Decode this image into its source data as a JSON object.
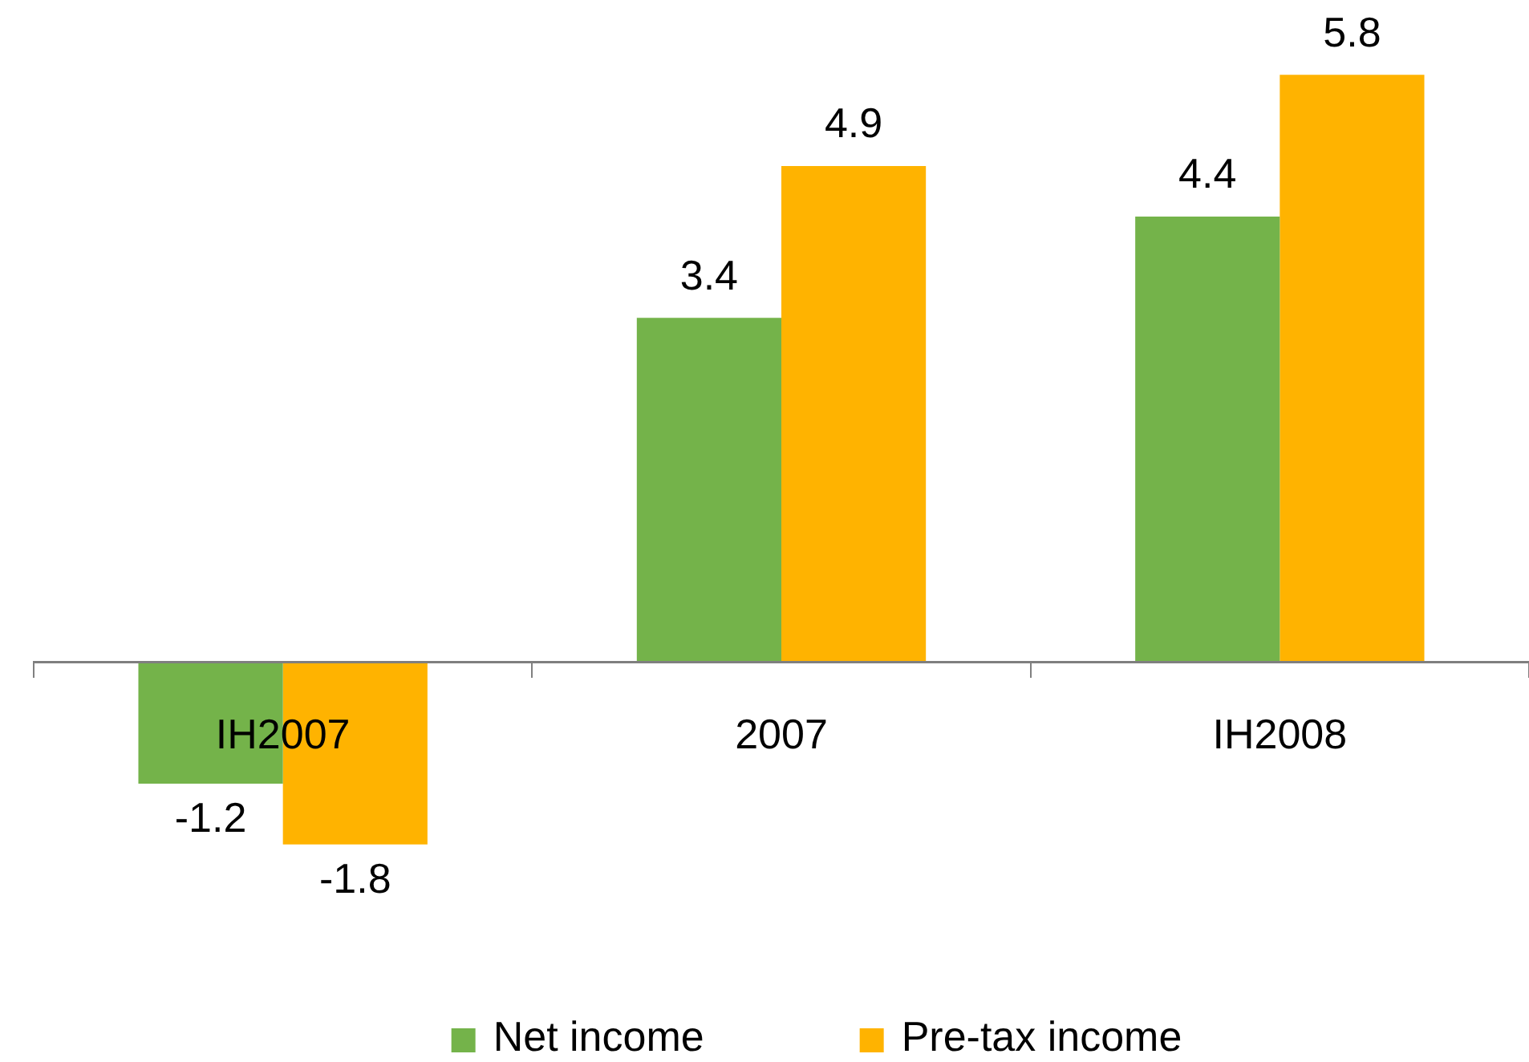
{
  "chart_data": {
    "type": "bar",
    "categories": [
      "IH2007",
      "2007",
      "IH2008"
    ],
    "series": [
      {
        "name": "Net income",
        "color": "#74b34a",
        "values": [
          -1.2,
          3.4,
          4.4
        ]
      },
      {
        "name": "Pre-tax income",
        "color": "#ffb300",
        "values": [
          -1.8,
          4.9,
          5.8
        ]
      }
    ],
    "tick_labels": "x",
    "legend": "bottom",
    "data_labels": true
  }
}
